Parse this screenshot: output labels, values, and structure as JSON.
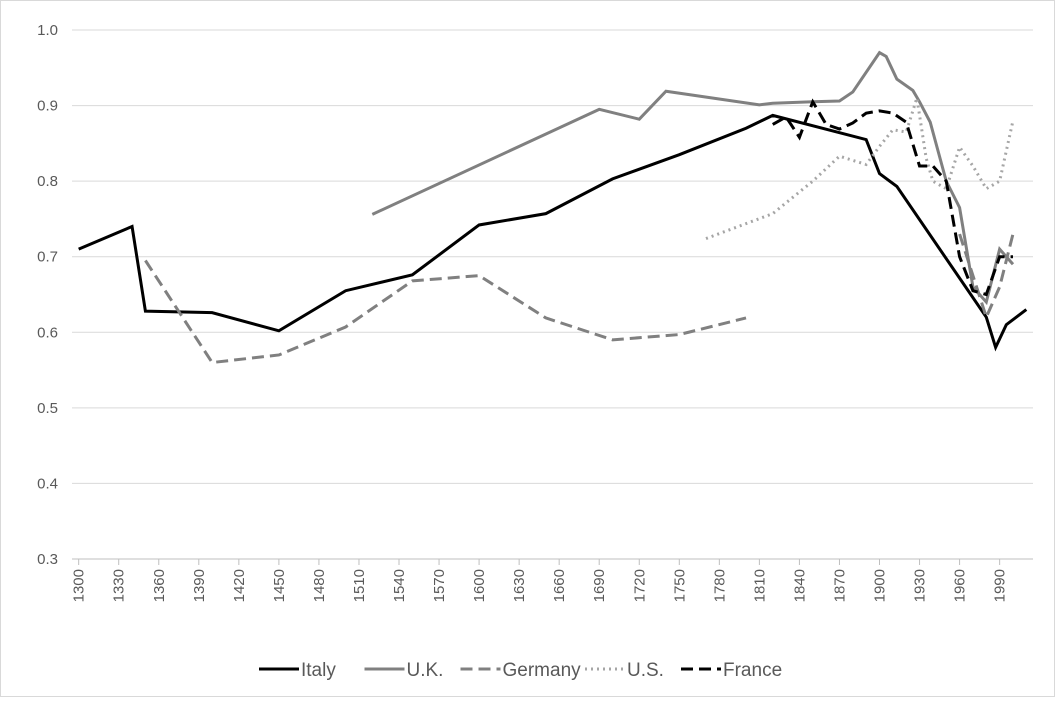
{
  "chart_data": {
    "type": "line",
    "xlim": [
      1295,
      2015
    ],
    "xticks": [
      1300,
      1330,
      1360,
      1390,
      1420,
      1450,
      1480,
      1510,
      1540,
      1570,
      1600,
      1630,
      1660,
      1690,
      1720,
      1750,
      1780,
      1810,
      1840,
      1870,
      1900,
      1930,
      1960,
      1990
    ],
    "ylim": [
      0.3,
      1.0
    ],
    "yticks": [
      0.3,
      0.4,
      0.5,
      0.6,
      0.7,
      0.8,
      0.9,
      {
        "value": 1.0,
        "label": "1.0"
      }
    ],
    "grid": true,
    "legend": "bottom",
    "series": [
      {
        "name": "Italy",
        "color": "#000000",
        "dash": "solid",
        "x": [
          1300,
          1340,
          1350,
          1400,
          1450,
          1500,
          1550,
          1600,
          1650,
          1700,
          1750,
          1800,
          1820,
          1890,
          1900,
          1913,
          1980,
          1987,
          1995,
          2010
        ],
        "values": [
          0.71,
          0.74,
          0.628,
          0.626,
          0.602,
          0.655,
          0.676,
          0.742,
          0.757,
          0.803,
          0.835,
          0.87,
          0.887,
          0.855,
          0.81,
          0.793,
          0.62,
          0.58,
          0.61,
          0.63
        ]
      },
      {
        "name": "U.K.",
        "color": "#808080",
        "dash": "solid",
        "x": [
          1520,
          1690,
          1720,
          1740,
          1810,
          1820,
          1850,
          1870,
          1880,
          1900,
          1905,
          1913,
          1925,
          1930,
          1938,
          1950,
          1960,
          1970,
          1980,
          1990,
          2000
        ],
        "values": [
          0.756,
          0.895,
          0.882,
          0.919,
          0.901,
          0.903,
          0.905,
          0.906,
          0.918,
          0.97,
          0.965,
          0.935,
          0.92,
          0.905,
          0.878,
          0.8,
          0.765,
          0.66,
          0.64,
          0.71,
          0.69
        ]
      },
      {
        "name": "Germany",
        "color": "#808080",
        "dash": "dashed",
        "x": [
          1350,
          1400,
          1450,
          1500,
          1550,
          1600,
          1650,
          1700,
          1750,
          1800,
          1900,
          1960,
          1980,
          1990,
          2000
        ],
        "values": [
          0.695,
          0.56,
          0.57,
          0.607,
          0.668,
          0.675,
          0.619,
          0.59,
          0.597,
          0.619,
          null,
          0.73,
          0.62,
          0.66,
          0.73
        ]
      },
      {
        "name": "U.S.",
        "color": "#a6a6a6",
        "dash": "dotted",
        "x": [
          1770,
          1820,
          1850,
          1870,
          1890,
          1900,
          1910,
          1920,
          1928,
          1935,
          1940,
          1950,
          1960,
          1970,
          1980,
          1990,
          2000
        ],
        "values": [
          0.724,
          0.757,
          0.8,
          0.833,
          0.822,
          0.846,
          0.868,
          0.865,
          0.91,
          0.83,
          0.8,
          0.79,
          0.845,
          0.82,
          0.79,
          0.8,
          0.88
        ]
      },
      {
        "name": "France",
        "color": "#000000",
        "dash": "dashed",
        "x": [
          1820,
          1830,
          1840,
          1850,
          1860,
          1870,
          1880,
          1890,
          1900,
          1910,
          1920,
          1930,
          1940,
          1950,
          1960,
          1970,
          1980,
          1990,
          2000
        ],
        "values": [
          0.875,
          0.885,
          0.858,
          0.905,
          0.875,
          0.869,
          0.877,
          0.89,
          0.893,
          0.89,
          0.878,
          0.82,
          0.82,
          0.8,
          0.7,
          0.655,
          0.65,
          0.7,
          0.7
        ]
      }
    ]
  }
}
